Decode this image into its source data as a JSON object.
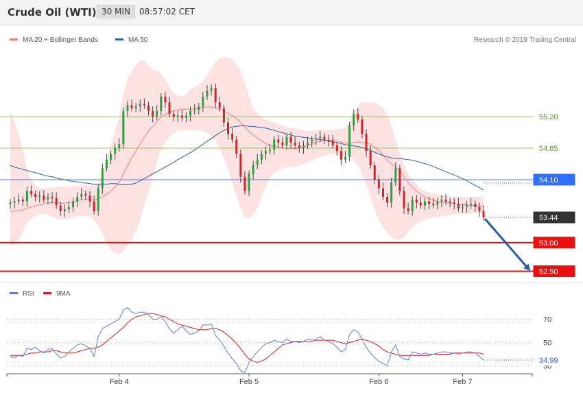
{
  "header": {
    "instrument": "Crude Oil (WTI)",
    "timeframe": "30 MIN",
    "time": "08:57:02 CET"
  },
  "credit": "Research © 2019 Trading Central",
  "legend": {
    "price": [
      {
        "label": "MA 20 + Bollinger Bands",
        "color": "#f08080"
      },
      {
        "label": "MA 50",
        "color": "#2f5d9e"
      }
    ],
    "rsi": [
      {
        "label": "RSI",
        "color": "#5b7fdb"
      },
      {
        "label": "9MA",
        "color": "#e31a1c"
      }
    ]
  },
  "chart_data": [
    {
      "type": "candlestick",
      "x_labels": [
        "Feb 4",
        "Feb 5",
        "Feb 6",
        "Feb 7"
      ],
      "ylim": [
        52.35,
        56.4
      ],
      "levels": [
        {
          "value": 55.2,
          "label": "55.20",
          "color": "#9bc26a",
          "kind": "resistance"
        },
        {
          "value": 54.65,
          "label": "54.65",
          "color": "#9bc26a",
          "kind": "resistance"
        },
        {
          "value": 54.1,
          "label": "54.10",
          "color": "#3b7bff",
          "kind": "pivot"
        },
        {
          "value": 53.0,
          "label": "53.00",
          "color": "#e01010",
          "kind": "support"
        },
        {
          "value": 52.5,
          "label": "52.50",
          "color": "#e01010",
          "kind": "support"
        }
      ],
      "last_price": {
        "value": 53.44,
        "label": "53.44"
      },
      "close": [
        53.7,
        53.72,
        53.75,
        53.72,
        53.9,
        53.85,
        53.8,
        53.82,
        53.75,
        53.8,
        53.78,
        53.65,
        53.55,
        53.58,
        53.62,
        53.72,
        53.8,
        53.85,
        53.82,
        53.72,
        53.55,
        53.95,
        54.3,
        54.45,
        54.55,
        54.65,
        54.72,
        55.3,
        55.4,
        55.35,
        55.38,
        55.42,
        55.4,
        55.3,
        55.2,
        55.3,
        55.55,
        55.45,
        55.25,
        55.2,
        55.22,
        55.18,
        55.22,
        55.3,
        55.32,
        55.38,
        55.55,
        55.65,
        55.7,
        55.45,
        55.35,
        55.1,
        54.9,
        54.8,
        54.55,
        54.15,
        53.9,
        54.2,
        54.35,
        54.45,
        54.55,
        54.6,
        54.62,
        54.8,
        54.75,
        54.7,
        54.85,
        54.75,
        54.7,
        54.65,
        54.7,
        54.75,
        54.8,
        54.82,
        54.85,
        54.8,
        54.78,
        54.7,
        54.6,
        54.45,
        54.5,
        55.05,
        55.25,
        55.15,
        54.9,
        54.6,
        54.35,
        54.1,
        53.95,
        53.8,
        53.7,
        54.05,
        54.3,
        53.9,
        53.6,
        53.55,
        53.75,
        53.7,
        53.65,
        53.72,
        53.68,
        53.66,
        53.72,
        53.75,
        53.72,
        53.7,
        53.68,
        53.6,
        53.62,
        53.65,
        53.68,
        53.62,
        53.55,
        53.44
      ],
      "ma20": [
        53.55,
        53.55,
        53.56,
        53.57,
        53.6,
        53.62,
        53.64,
        53.66,
        53.67,
        53.69,
        53.7,
        53.7,
        53.69,
        53.69,
        53.7,
        53.71,
        53.73,
        53.75,
        53.75,
        53.75,
        53.74,
        53.76,
        53.8,
        53.85,
        53.9,
        53.97,
        54.05,
        54.2,
        54.35,
        54.48,
        54.6,
        54.72,
        54.84,
        54.95,
        55.03,
        55.11,
        55.19,
        55.24,
        55.28,
        55.3,
        55.32,
        55.33,
        55.33,
        55.33,
        55.34,
        55.35,
        55.36,
        55.37,
        55.37,
        55.35,
        55.33,
        55.3,
        55.26,
        55.22,
        55.17,
        55.1,
        55.01,
        54.94,
        54.88,
        54.83,
        54.78,
        54.73,
        54.7,
        54.68,
        54.67,
        54.66,
        54.65,
        54.64,
        54.64,
        54.65,
        54.67,
        54.7,
        54.72,
        54.75,
        54.77,
        54.78,
        54.79,
        54.79,
        54.78,
        54.76,
        54.74,
        54.74,
        54.75,
        54.76,
        54.75,
        54.74,
        54.72,
        54.67,
        54.61,
        54.53,
        54.44,
        54.38,
        54.32,
        54.25,
        54.15,
        54.05,
        53.97,
        53.9,
        53.84,
        53.8,
        53.77,
        53.74,
        53.72,
        53.71,
        53.7,
        53.69,
        53.68,
        53.67,
        53.66,
        53.66,
        53.65,
        53.65,
        53.64,
        53.63
      ],
      "bollinger_upper": [
        55.3,
        55.1,
        54.9,
        54.6,
        54.3,
        54.1,
        54.0,
        53.95,
        53.93,
        53.95,
        53.96,
        53.97,
        53.98,
        53.98,
        53.98,
        53.98,
        53.99,
        54.0,
        54.0,
        54.0,
        54.01,
        54.05,
        54.2,
        54.45,
        54.7,
        54.95,
        55.2,
        55.6,
        55.85,
        56.0,
        56.1,
        56.18,
        56.18,
        56.1,
        56.02,
        56.0,
        55.95,
        55.85,
        55.72,
        55.62,
        55.57,
        55.56,
        55.6,
        55.68,
        55.72,
        55.76,
        55.82,
        55.92,
        56.05,
        56.15,
        56.22,
        56.24,
        56.24,
        56.2,
        56.12,
        56.0,
        55.8,
        55.55,
        55.35,
        55.25,
        55.2,
        55.15,
        55.12,
        55.1,
        55.07,
        55.05,
        55.02,
        55.0,
        55.0,
        54.98,
        54.96,
        54.95,
        54.95,
        54.96,
        54.97,
        54.97,
        54.97,
        54.97,
        54.98,
        54.99,
        55.02,
        55.1,
        55.25,
        55.4,
        55.45,
        55.45,
        55.45,
        55.45,
        55.4,
        55.35,
        55.25,
        55.05,
        54.8,
        54.55,
        54.35,
        54.2,
        54.1,
        54.02,
        53.95,
        53.9,
        53.87,
        53.85,
        53.84,
        53.83,
        53.82,
        53.81,
        53.8,
        53.8,
        53.8,
        53.8,
        53.8,
        53.8,
        53.8,
        53.8
      ],
      "bollinger_lower": [
        52.95,
        52.97,
        53.05,
        53.2,
        53.35,
        53.42,
        53.47,
        53.5,
        53.5,
        53.48,
        53.45,
        53.42,
        53.4,
        53.4,
        53.42,
        53.44,
        53.46,
        53.47,
        53.47,
        53.45,
        53.4,
        53.3,
        53.15,
        53.0,
        52.88,
        52.82,
        52.8,
        52.85,
        52.95,
        53.05,
        53.2,
        53.4,
        53.65,
        53.9,
        54.15,
        54.4,
        54.6,
        54.75,
        54.85,
        54.92,
        54.95,
        54.96,
        54.96,
        54.96,
        54.96,
        54.96,
        54.95,
        54.92,
        54.86,
        54.78,
        54.65,
        54.48,
        54.28,
        54.05,
        53.8,
        53.6,
        53.45,
        53.42,
        53.48,
        53.62,
        53.8,
        53.98,
        54.12,
        54.22,
        54.27,
        54.3,
        54.31,
        54.32,
        54.33,
        54.35,
        54.37,
        54.4,
        54.43,
        54.47,
        54.5,
        54.52,
        54.54,
        54.55,
        54.55,
        54.54,
        54.52,
        54.5,
        54.45,
        54.35,
        54.2,
        54.02,
        53.8,
        53.58,
        53.4,
        53.27,
        53.17,
        53.1,
        53.06,
        53.05,
        53.1,
        53.18,
        53.26,
        53.32,
        53.37,
        53.4,
        53.42,
        53.44,
        53.45,
        53.46,
        53.47,
        53.48,
        53.49,
        53.5,
        53.5,
        53.51,
        53.51,
        53.51,
        53.52,
        53.52
      ],
      "ma50": [
        54.35,
        54.32,
        54.3,
        54.28,
        54.26,
        54.24,
        54.22,
        54.2,
        54.18,
        54.16,
        54.15,
        54.13,
        54.11,
        54.1,
        54.08,
        54.07,
        54.06,
        54.05,
        54.04,
        54.03,
        54.02,
        54.02,
        54.02,
        54.02,
        54.03,
        54.03,
        54.02,
        54.01,
        54.01,
        54.02,
        54.04,
        54.08,
        54.12,
        54.16,
        54.2,
        54.24,
        54.28,
        54.32,
        54.36,
        54.4,
        54.45,
        54.49,
        54.53,
        54.57,
        54.62,
        54.67,
        54.72,
        54.77,
        54.82,
        54.87,
        54.92,
        54.96,
        55.0,
        55.02,
        55.03,
        55.04,
        55.04,
        55.03,
        55.03,
        55.02,
        55.01,
        55.0,
        54.98,
        54.96,
        54.94,
        54.92,
        54.9,
        54.88,
        54.86,
        54.85,
        54.84,
        54.83,
        54.82,
        54.81,
        54.8,
        54.79,
        54.77,
        54.76,
        54.75,
        54.73,
        54.71,
        54.7,
        54.69,
        54.68,
        54.66,
        54.64,
        54.61,
        54.58,
        54.55,
        54.52,
        54.5,
        54.48,
        54.47,
        54.47,
        54.46,
        54.45,
        54.44,
        54.42,
        54.4,
        54.38,
        54.36,
        54.33,
        54.3,
        54.27,
        54.24,
        54.21,
        54.18,
        54.15,
        54.12,
        54.08,
        54.04,
        54.0,
        53.96,
        53.92
      ],
      "forecast_arrow": {
        "from": 53.44,
        "to": 52.5
      }
    },
    {
      "type": "line",
      "title": "RSI",
      "ylim": [
        25,
        85
      ],
      "yticks": [
        30,
        50,
        70
      ],
      "last_value": {
        "value": 34.99,
        "label": "34.99"
      },
      "series": [
        {
          "name": "RSI",
          "color": "#5b7fdb",
          "values": [
            38,
            37,
            39,
            38,
            45,
            44,
            46,
            43,
            41,
            44,
            45,
            40,
            37,
            38,
            42,
            45,
            48,
            49,
            47,
            45,
            38,
            55,
            62,
            64,
            66,
            68,
            70,
            78,
            80,
            76,
            75,
            76,
            76,
            74,
            70,
            70,
            72,
            68,
            62,
            58,
            61,
            64,
            60,
            57,
            58,
            60,
            65,
            65,
            66,
            56,
            52,
            47,
            41,
            36,
            32,
            26,
            24,
            33,
            38,
            42,
            46,
            49,
            50,
            52,
            51,
            50,
            53,
            51,
            51,
            50,
            51,
            53,
            52,
            53,
            55,
            52,
            51,
            49,
            46,
            42,
            44,
            57,
            61,
            59,
            53,
            46,
            41,
            37,
            34,
            32,
            30,
            42,
            48,
            38,
            36,
            35,
            42,
            41,
            40,
            41,
            40,
            40,
            41,
            42,
            42,
            41,
            41,
            40,
            41,
            42,
            42,
            41,
            38,
            34.99
          ]
        },
        {
          "name": "9MA",
          "color": "#e31a1c",
          "values": [
            39,
            39,
            39,
            39,
            40,
            41,
            41,
            42,
            42,
            42,
            43,
            43,
            42,
            41,
            41,
            41,
            42,
            43,
            44,
            45,
            45,
            46,
            48,
            51,
            54,
            57,
            60,
            63,
            67,
            70,
            72,
            73,
            74,
            75,
            75,
            74,
            73,
            72,
            70,
            68,
            66,
            65,
            64,
            63,
            62,
            61,
            61,
            61,
            62,
            62,
            61,
            59,
            56,
            53,
            49,
            45,
            40,
            36,
            34,
            33,
            34,
            36,
            39,
            42,
            45,
            48,
            49,
            50,
            51,
            51,
            51,
            51,
            51,
            52,
            52,
            52,
            52,
            52,
            51,
            50,
            49,
            50,
            51,
            52,
            53,
            52,
            51,
            49,
            47,
            44,
            42,
            41,
            40,
            39,
            39,
            39,
            39,
            39,
            39,
            39,
            39,
            40,
            40,
            40,
            40,
            40,
            41,
            41,
            41,
            41,
            41,
            41,
            41,
            40
          ]
        }
      ]
    }
  ]
}
